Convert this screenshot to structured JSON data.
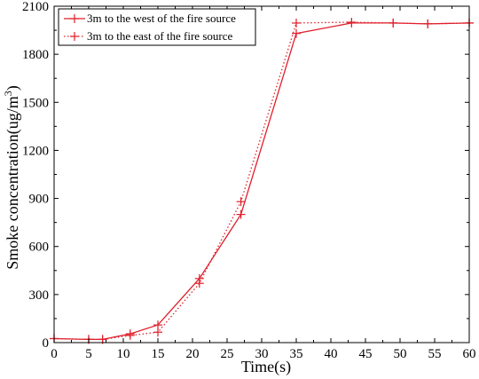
{
  "chart_data": {
    "type": "line",
    "xlabel": "Time(s)",
    "ylabel_main": "Smoke concentration(ug/m",
    "ylabel_sup": "3",
    "ylabel_close": ")",
    "xlim": [
      0,
      60
    ],
    "ylim": [
      0,
      2100
    ],
    "xticks": [
      0,
      5,
      10,
      15,
      20,
      25,
      30,
      35,
      40,
      45,
      50,
      55,
      60
    ],
    "yticks": [
      0,
      300,
      600,
      900,
      1200,
      1500,
      1800,
      2100
    ],
    "grid": false,
    "legend_position": "top-left",
    "series": [
      {
        "name": "3m to the west of the fire source",
        "color": "#e0202c",
        "line_style": "solid",
        "marker": "plus",
        "x": [
          0,
          5,
          7,
          11,
          15,
          21,
          27,
          35,
          43,
          49,
          54,
          60
        ],
        "y": [
          25,
          20,
          20,
          55,
          110,
          400,
          800,
          1930,
          1995,
          1995,
          1990,
          1995
        ]
      },
      {
        "name": "3m to the east of the fire source",
        "color": "#e0202c",
        "line_style": "dotted",
        "marker": "plus",
        "x": [
          0,
          5,
          7,
          11,
          15,
          21,
          27,
          35,
          43,
          49,
          54,
          60
        ],
        "y": [
          25,
          20,
          20,
          45,
          65,
          370,
          880,
          1995,
          2000,
          1995,
          1990,
          1995
        ]
      }
    ]
  }
}
